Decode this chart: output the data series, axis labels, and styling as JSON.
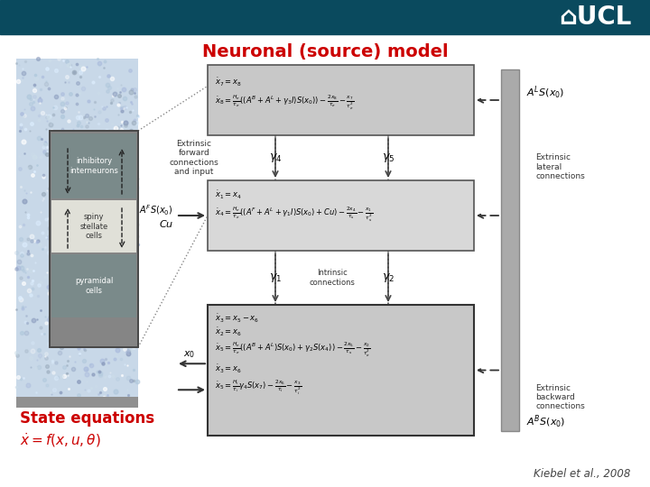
{
  "title": "Neuronal (source) model",
  "title_color": "#cc0000",
  "title_fontsize": 14,
  "bg_color": "#ffffff",
  "ucl_bg_color": "#0a4a5e",
  "ucl_color": "#ffffff",
  "citation": "Kiebel et al., 2008",
  "state_eq_title": "State equations",
  "state_color": "#cc0000",
  "box_top_color": "#c8c8c8",
  "box_mid_color": "#d8d8d8",
  "box_bot_color": "#c8c8c8",
  "neuron_outer_color": "#aab8c2",
  "neuron_inner_color": "#909090",
  "layer_inhibitory_color": "#909090",
  "layer_spiny_color": "#e8e8e0",
  "layer_pyramidal_color": "#909090",
  "label_inhibitory": "inhibitory\ninterneurons",
  "label_spiny": "spiny\nstellate\ncells",
  "label_pyramidal": "pyramidal\ncells",
  "label_extrinsic_forward": "Extrinsic\nforward\nconnections\nand input",
  "label_extrinsic_lateral": "Extrinsic\nlateral\nconnections",
  "label_extrinsic_backward": "Extrinsic\nbackward\nconnections",
  "label_intrinsic": "Intrinsic\nconnections"
}
